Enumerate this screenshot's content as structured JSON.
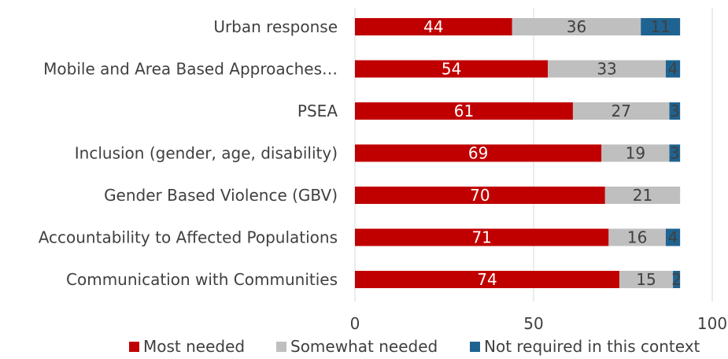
{
  "chart_data": {
    "type": "bar",
    "orientation": "horizontal",
    "stacked": true,
    "title": "",
    "xlabel": "",
    "ylabel": "",
    "xlim": [
      0,
      100
    ],
    "x_ticks": [
      0,
      50,
      100
    ],
    "grid": "vertical",
    "legend_position": "bottom",
    "categories": [
      "Urban response",
      "Mobile and Area Based Approaches…",
      "PSEA",
      "Inclusion (gender, age, disability)",
      "Gender Based Violence (GBV)",
      "Accountability to Affected Populations",
      "Communication with Communities"
    ],
    "series": [
      {
        "name": "Most needed",
        "color": "#c00000",
        "label_color": "#ffffff",
        "values": [
          44,
          54,
          61,
          69,
          70,
          71,
          74
        ]
      },
      {
        "name": "Somewhat needed",
        "color": "#bfbfbf",
        "label_color": "#404040",
        "values": [
          36,
          33,
          27,
          19,
          21,
          16,
          15
        ]
      },
      {
        "name": "Not required in this context",
        "color": "#1f6391",
        "label_color": "#404040",
        "values": [
          11,
          4,
          3,
          3,
          null,
          4,
          2
        ]
      }
    ]
  }
}
